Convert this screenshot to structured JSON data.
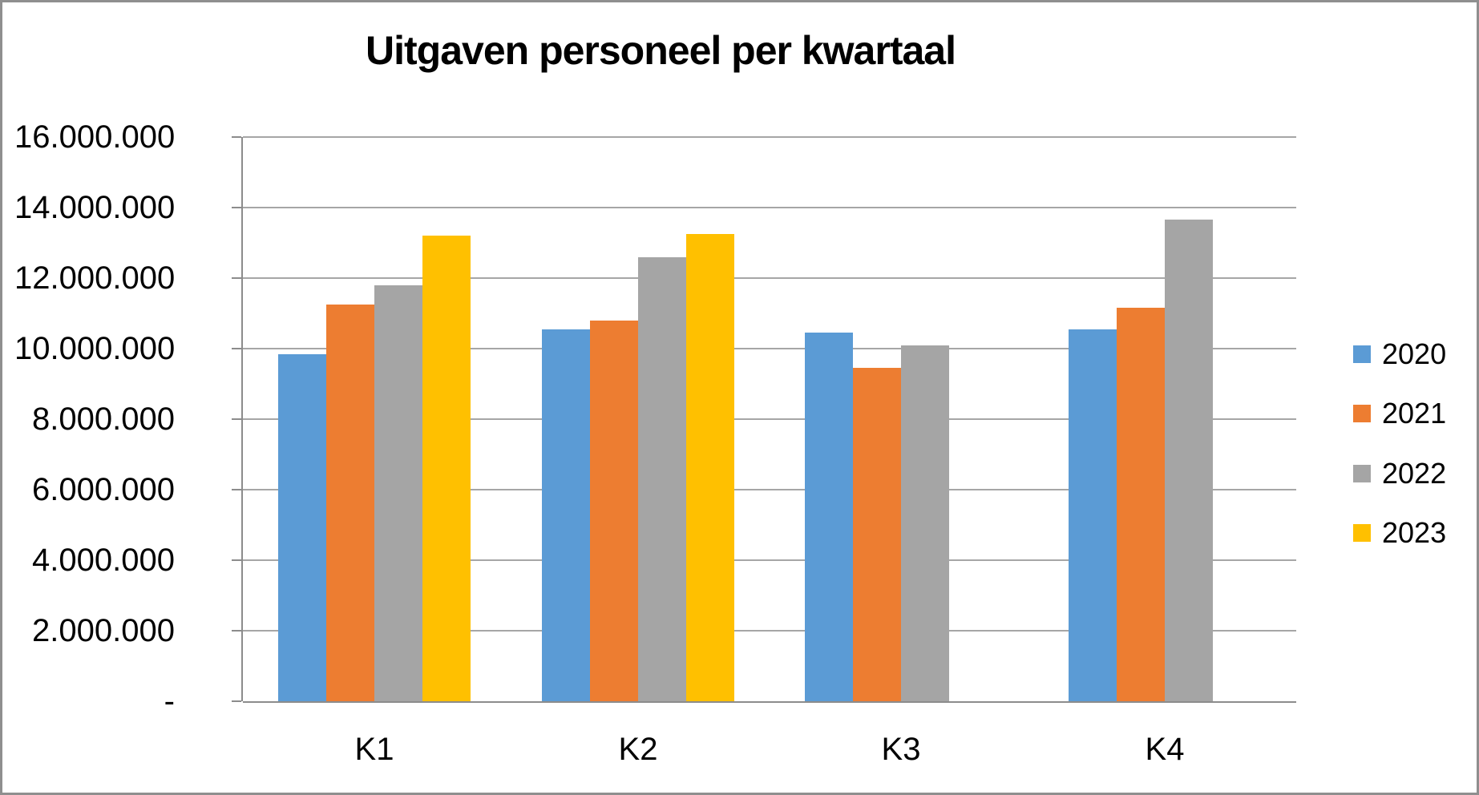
{
  "window": {
    "background": "#ffffff",
    "border_color": "#8f8f8f"
  },
  "chart_data": {
    "type": "bar",
    "title": "Uitgaven personeel per kwartaal",
    "categories": [
      "K1",
      "K2",
      "K3",
      "K4"
    ],
    "series": [
      {
        "name": "2020",
        "color": "#5B9BD5",
        "values": [
          9850000,
          10550000,
          10450000,
          10550000
        ]
      },
      {
        "name": "2021",
        "color": "#ED7D31",
        "values": [
          11250000,
          10800000,
          9450000,
          11150000
        ]
      },
      {
        "name": "2022",
        "color": "#A5A5A5",
        "values": [
          11800000,
          12600000,
          10100000,
          13650000
        ]
      },
      {
        "name": "2023",
        "color": "#FFC000",
        "values": [
          13200000,
          13250000,
          null,
          null
        ]
      }
    ],
    "ylim": [
      0,
      16000000
    ],
    "ytick_interval": 2000000,
    "ytick_labels": [
      "16.000.000",
      "14.000.000",
      "12.000.000",
      "10.000.000",
      "8.000.000",
      "6.000.000",
      "4.000.000",
      "2.000.000",
      "-"
    ],
    "xlabel": "",
    "ylabel": "",
    "grid": true,
    "legend_position": "right",
    "gridline_color": "#a6a6a6",
    "axis_color": "#8c8c8c",
    "text_color": "#000000"
  }
}
